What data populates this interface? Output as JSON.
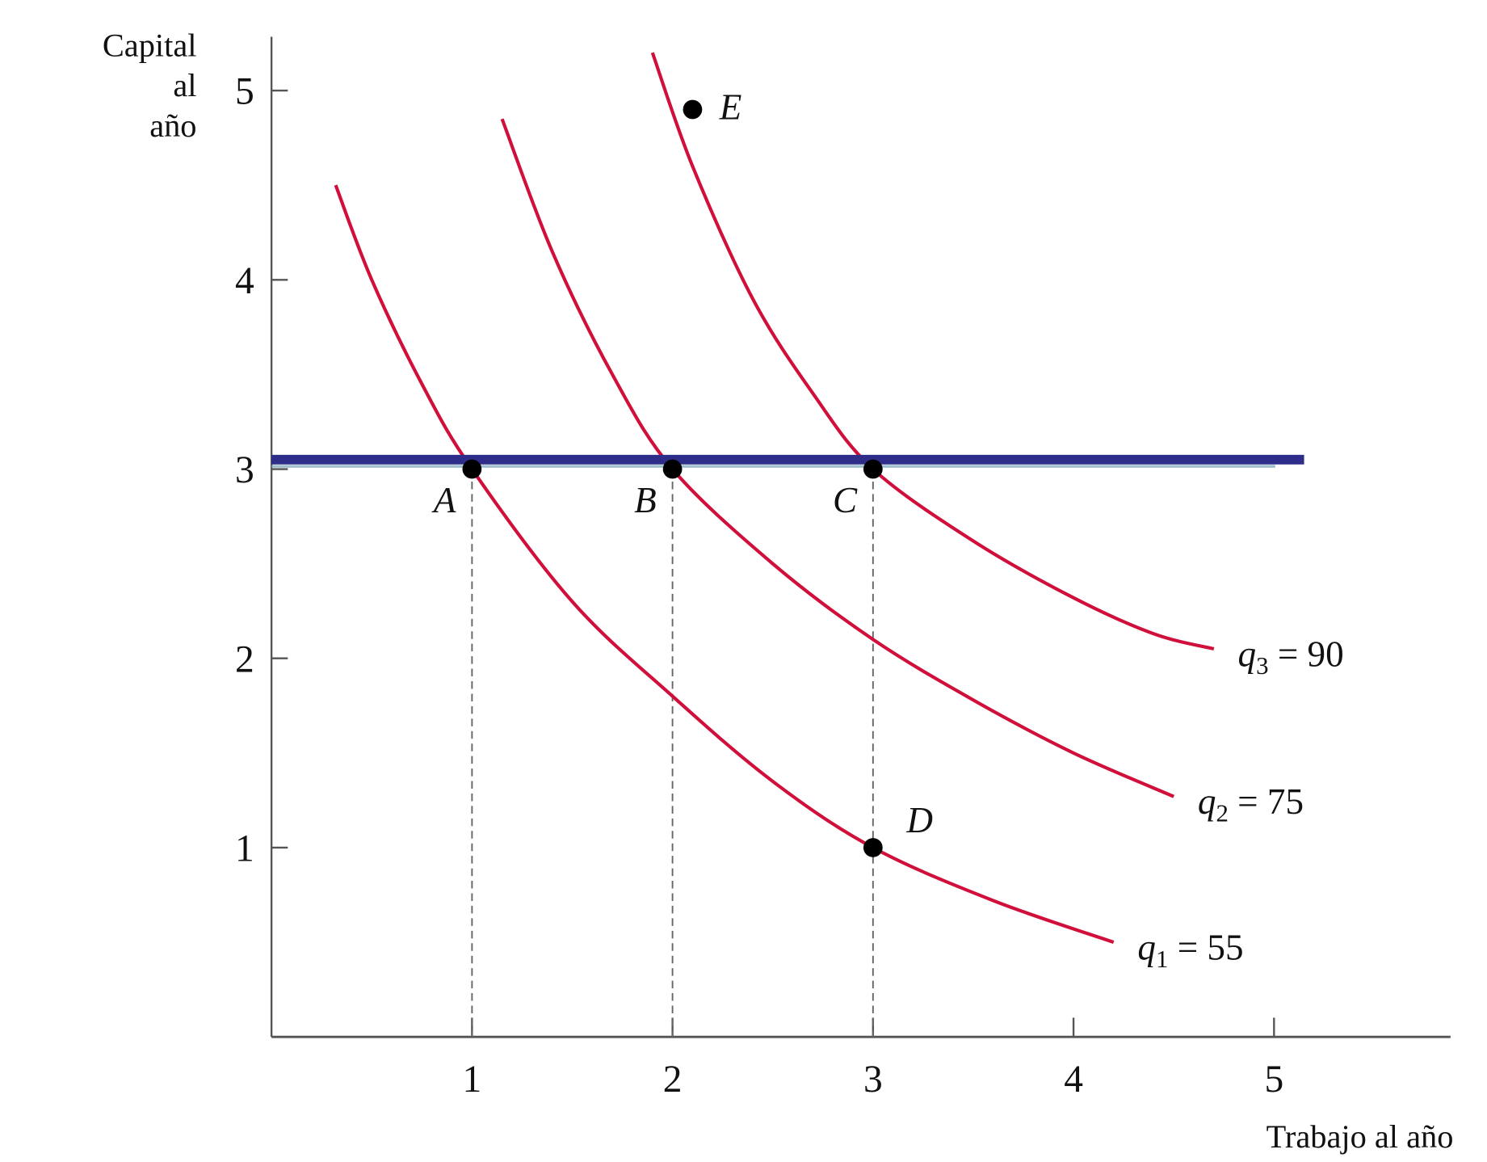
{
  "chart_data": {
    "type": "line",
    "title": "",
    "ylabel_lines": [
      "Capital",
      "al",
      "año"
    ],
    "xlabel": "Trabajo al año",
    "xlim": [
      0,
      5.8
    ],
    "ylim": [
      0,
      5.2
    ],
    "xticks": [
      "1",
      "2",
      "3",
      "4",
      "5"
    ],
    "yticks": [
      "1",
      "2",
      "3",
      "4",
      "5"
    ],
    "grid": false,
    "series": [
      {
        "name": "q1",
        "label_var": "q",
        "label_sub": "1",
        "label_rest": " = 55",
        "color": "#d0103a",
        "points": [
          [
            0.32,
            4.5
          ],
          [
            0.5,
            4.0
          ],
          [
            0.75,
            3.45
          ],
          [
            1,
            3
          ],
          [
            1.5,
            2.3
          ],
          [
            2,
            1.8
          ],
          [
            2.5,
            1.35
          ],
          [
            3,
            1
          ],
          [
            3.6,
            0.72
          ],
          [
            4.2,
            0.5
          ]
        ]
      },
      {
        "name": "q2",
        "label_var": "q",
        "label_sub": "2",
        "label_rest": " = 75",
        "color": "#d0103a",
        "points": [
          [
            1.15,
            4.85
          ],
          [
            1.4,
            4.15
          ],
          [
            1.7,
            3.5
          ],
          [
            2,
            3
          ],
          [
            2.5,
            2.5
          ],
          [
            3,
            2.1
          ],
          [
            3.5,
            1.78
          ],
          [
            4,
            1.5
          ],
          [
            4.5,
            1.27
          ]
        ]
      },
      {
        "name": "q3",
        "label_var": "q",
        "label_sub": "3",
        "label_rest": " = 90",
        "color": "#d0103a",
        "points": [
          [
            1.9,
            5.2
          ],
          [
            2.1,
            4.6
          ],
          [
            2.4,
            3.9
          ],
          [
            2.7,
            3.4
          ],
          [
            3,
            3
          ],
          [
            3.5,
            2.62
          ],
          [
            4,
            2.32
          ],
          [
            4.4,
            2.13
          ],
          [
            4.7,
            2.05
          ]
        ]
      }
    ],
    "isocost_line": {
      "y": 3.05,
      "x_range": [
        0,
        5.15
      ],
      "color": "#2e2e8a"
    },
    "points": [
      {
        "label": "A",
        "x": 1,
        "y": 3
      },
      {
        "label": "B",
        "x": 2,
        "y": 3
      },
      {
        "label": "C",
        "x": 3,
        "y": 3
      },
      {
        "label": "D",
        "x": 3,
        "y": 1
      },
      {
        "label": "E",
        "x": 2.1,
        "y": 4.9
      }
    ],
    "dashed_verticals": [
      1,
      2,
      3
    ]
  }
}
